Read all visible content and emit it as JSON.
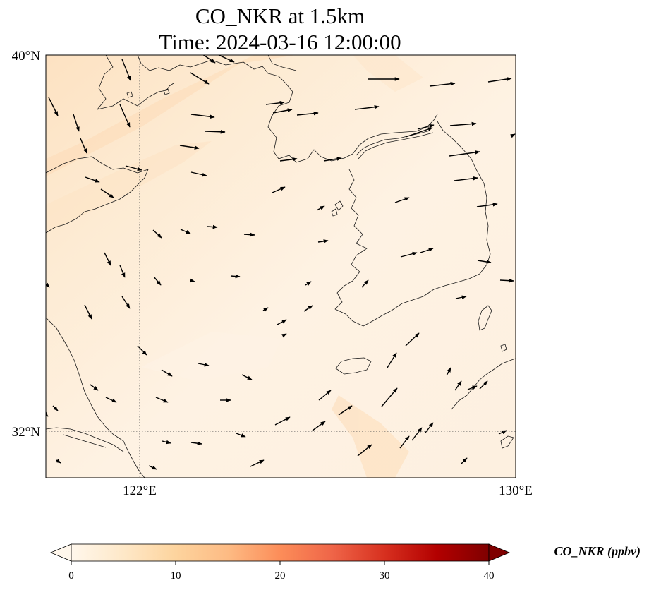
{
  "title": {
    "line1": "CO_NKR at 1.5km",
    "line2": "Time: 2024-03-16 12:00:00"
  },
  "map": {
    "lon_ticks": [
      "122°E",
      "130°E"
    ],
    "lat_ticks": [
      "40°N",
      "32°N"
    ],
    "gridlines": {
      "lon": [
        122
      ],
      "lat": [
        32
      ],
      "style": "dotted"
    },
    "extent": {
      "lon": [
        120,
        130
      ],
      "lat": [
        31,
        40
      ]
    },
    "field_colors": {
      "background": "#fdf0e0",
      "band": "#fde2c2"
    }
  },
  "colorbar": {
    "label": "CO_NKR (ppbv)",
    "ticks": [
      "0",
      "10",
      "20",
      "30",
      "40"
    ],
    "range": [
      0,
      40
    ],
    "extend": "both",
    "cmap": "OrRd",
    "stops": [
      "#fff7ec",
      "#fee8c8",
      "#fdd49e",
      "#fdbb84",
      "#fc8d59",
      "#ef6548",
      "#d7301f",
      "#b30000",
      "#7f0000"
    ]
  },
  "wind_vectors": [
    [
      69,
      138,
      82,
      164
    ],
    [
      104,
      162,
      112,
      186
    ],
    [
      114,
      196,
      123,
      217
    ],
    [
      173,
      84,
      185,
      114
    ],
    [
      170,
      148,
      184,
      180
    ],
    [
      287,
      77,
      305,
      89
    ],
    [
      270,
      103,
      296,
      119
    ],
    [
      308,
      77,
      332,
      88
    ],
    [
      271,
      162,
      304,
      166
    ],
    [
      291,
      186,
      319,
      187
    ],
    [
      255,
      206,
      282,
      210
    ],
    [
      178,
      235,
      201,
      241
    ],
    [
      121,
      251,
      141,
      258
    ],
    [
      143,
      268,
      161,
      280
    ],
    [
      271,
      244,
      293,
      249
    ],
    [
      256,
      325,
      270,
      331
    ],
    [
      217,
      326,
      229,
      337
    ],
    [
      294,
      321,
      308,
      322
    ],
    [
      346,
      332,
      361,
      333
    ],
    [
      148,
      358,
      157,
      376
    ],
    [
      170,
      376,
      177,
      393
    ],
    [
      218,
      392,
      228,
      404
    ],
    [
      327,
      391,
      340,
      392
    ],
    [
      272,
      398,
      276,
      399
    ],
    [
      120,
      432,
      130,
      452
    ],
    [
      173,
      420,
      184,
      437
    ],
    [
      195,
      490,
      208,
      503
    ],
    [
      229,
      524,
      244,
      533
    ],
    [
      281,
      515,
      296,
      518
    ],
    [
      343,
      531,
      357,
      538
    ],
    [
      128,
      545,
      139,
      553
    ],
    [
      150,
      563,
      165,
      570
    ],
    [
      221,
      563,
      238,
      570
    ],
    [
      312,
      567,
      327,
      567
    ],
    [
      75,
      575,
      82,
      582
    ],
    [
      230,
      625,
      242,
      628
    ],
    [
      271,
      627,
      286,
      629
    ],
    [
      335,
      614,
      348,
      619
    ],
    [
      355,
      661,
      374,
      652
    ],
    [
      211,
      660,
      222,
      665
    ],
    [
      80,
      652,
      86,
      656
    ],
    [
      390,
      602,
      411,
      591
    ],
    [
      443,
      610,
      461,
      597
    ],
    [
      480,
      588,
      499,
      575
    ],
    [
      452,
      567,
      469,
      553
    ],
    [
      541,
      576,
      563,
      550
    ],
    [
      549,
      521,
      562,
      500
    ],
    [
      575,
      490,
      594,
      472
    ],
    [
      507,
      646,
      527,
      630
    ],
    [
      567,
      635,
      580,
      618
    ],
    [
      584,
      624,
      598,
      606
    ],
    [
      603,
      613,
      614,
      599
    ],
    [
      654,
      657,
      662,
      649
    ],
    [
      633,
      532,
      639,
      521
    ],
    [
      645,
      553,
      654,
      540
    ],
    [
      663,
      552,
      676,
      547
    ],
    [
      680,
      551,
      691,
      540
    ],
    [
      707,
      615,
      718,
      610
    ],
    [
      521,
      112,
      566,
      112
    ],
    [
      503,
      155,
      537,
      151
    ],
    [
      377,
      148,
      403,
      145
    ],
    [
      387,
      160,
      414,
      155
    ],
    [
      421,
      163,
      451,
      160
    ],
    [
      386,
      273,
      404,
      265
    ],
    [
      397,
      228,
      421,
      225
    ],
    [
      459,
      228,
      484,
      224
    ],
    [
      449,
      298,
      460,
      292
    ],
    [
      560,
      287,
      580,
      280
    ],
    [
      575,
      194,
      613,
      181
    ],
    [
      592,
      183,
      615,
      177
    ],
    [
      609,
      122,
      645,
      118
    ],
    [
      692,
      116,
      725,
      111
    ],
    [
      638,
      178,
      675,
      175
    ],
    [
      637,
      221,
      680,
      215
    ],
    [
      644,
      256,
      677,
      252
    ],
    [
      676,
      293,
      705,
      289
    ],
    [
      568,
      364,
      591,
      358
    ],
    [
      596,
      358,
      614,
      352
    ],
    [
      677,
      369,
      696,
      372
    ],
    [
      709,
      397,
      728,
      398
    ],
    [
      646,
      423,
      661,
      420
    ],
    [
      513,
      407,
      522,
      397
    ],
    [
      433,
      404,
      441,
      399
    ],
    [
      451,
      343,
      465,
      341
    ],
    [
      431,
      441,
      443,
      433
    ],
    [
      373,
      440,
      380,
      436
    ],
    [
      393,
      460,
      406,
      453
    ],
    [
      404,
      474,
      406,
      473
    ],
    [
      66,
      403,
      70,
      407
    ],
    [
      66,
      588,
      68,
      590
    ],
    [
      728,
      191,
      730,
      190
    ]
  ]
}
